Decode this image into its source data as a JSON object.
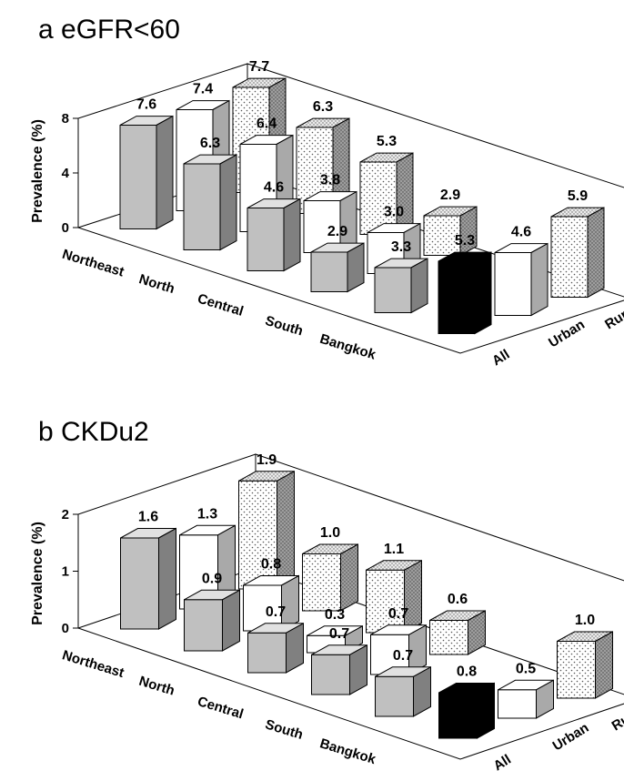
{
  "chart_data": [
    {
      "type": "bar",
      "title": "a eGFR<60",
      "ylabel": "Prevalence (%)",
      "yticks": [
        0,
        4,
        8
      ],
      "ylim": [
        0,
        8
      ],
      "categories": [
        "Northeast",
        "North",
        "Central",
        "South",
        "Bangkok"
      ],
      "series_labels": [
        "All",
        "Urban",
        "Rural"
      ],
      "series": [
        {
          "name": "All",
          "values": [
            7.6,
            6.3,
            4.6,
            2.9,
            3.3
          ],
          "overall": 5.3
        },
        {
          "name": "Urban",
          "values": [
            7.4,
            6.4,
            3.8,
            3.0,
            null
          ],
          "overall": 4.6
        },
        {
          "name": "Rural",
          "values": [
            7.7,
            6.3,
            5.3,
            2.9,
            null
          ],
          "overall": 5.9
        }
      ],
      "colors": {
        "All": "#bdbdbd",
        "Urban": "#ffffff",
        "Rural": "dotted",
        "overall_all": "#000000"
      }
    },
    {
      "type": "bar",
      "title": "b CKDu2",
      "ylabel": "Prevalence (%)",
      "yticks": [
        0,
        1,
        2
      ],
      "ylim": [
        0,
        2
      ],
      "categories": [
        "Northeast",
        "North",
        "Central",
        "South",
        "Bangkok"
      ],
      "series_labels": [
        "All",
        "Urban",
        "Rural"
      ],
      "series": [
        {
          "name": "All",
          "values": [
            1.6,
            0.9,
            0.7,
            0.7,
            0.7
          ],
          "overall": 0.8
        },
        {
          "name": "Urban",
          "values": [
            1.3,
            0.8,
            0.3,
            0.7,
            null
          ],
          "overall": 0.5
        },
        {
          "name": "Rural",
          "values": [
            1.9,
            1.0,
            1.1,
            0.6,
            null
          ],
          "overall": 1.0
        }
      ],
      "colors": {
        "All": "#bdbdbd",
        "Urban": "#ffffff",
        "Rural": "dotted",
        "overall_all": "#000000"
      }
    }
  ]
}
